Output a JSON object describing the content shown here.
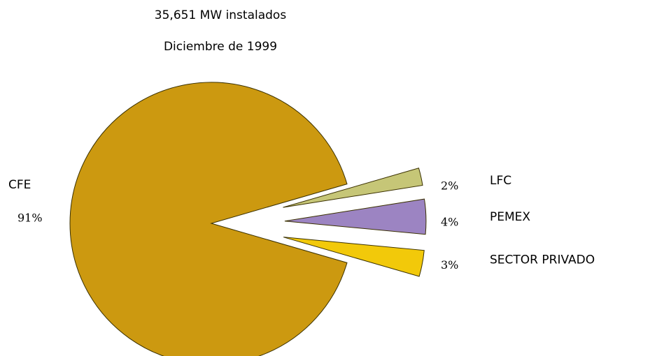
{
  "chart_data": {
    "type": "pie",
    "title": "35,651 MW instalados",
    "subtitle": "Diciembre de 1999",
    "categories": [
      "CFE",
      "LFC",
      "PEMEX",
      "SECTOR PRIVADO"
    ],
    "values": [
      91,
      2,
      4,
      3
    ],
    "value_labels": [
      "91%",
      "2%",
      "4%",
      "3%"
    ],
    "colors": [
      "#cc9910",
      "#c6c677",
      "#9c84c2",
      "#f2c90a"
    ]
  }
}
